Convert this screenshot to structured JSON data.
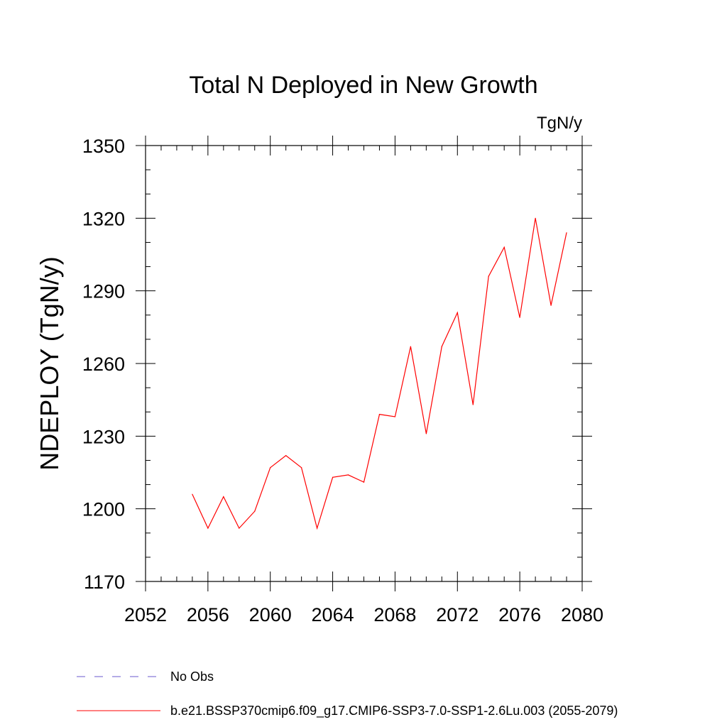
{
  "chart_data": {
    "type": "line",
    "title": "Total N Deployed in New Growth",
    "units_label": "TgN/y",
    "ylabel": "NDEPLOY  (TgN/y)",
    "xlabel": "",
    "xlim": [
      2052,
      2080
    ],
    "ylim": [
      1170,
      1350
    ],
    "x_ticks": [
      2052,
      2056,
      2060,
      2064,
      2068,
      2072,
      2076,
      2080
    ],
    "y_ticks": [
      1170,
      1200,
      1230,
      1260,
      1290,
      1320,
      1350
    ],
    "x_minor_step": 1,
    "y_minor_step": 10,
    "grid": false,
    "series": [
      {
        "name": "b.e21.BSSP370cmip6.f09_g17.CMIP6-SSP3-7.0-SSP1-2.6Lu.003 (2055-2079)",
        "color": "#ff0000",
        "x": [
          2055,
          2056,
          2057,
          2058,
          2059,
          2060,
          2061,
          2062,
          2063,
          2064,
          2065,
          2066,
          2067,
          2068,
          2069,
          2070,
          2071,
          2072,
          2073,
          2074,
          2075,
          2076,
          2077,
          2078,
          2079
        ],
        "values": [
          1206,
          1192,
          1205,
          1192,
          1199,
          1217,
          1222,
          1217,
          1192,
          1213,
          1214,
          1211,
          1239,
          1238,
          1267,
          1231,
          1267,
          1281,
          1243,
          1296,
          1308,
          1279,
          1320,
          1284,
          1314
        ]
      }
    ]
  },
  "legend": {
    "placement": "bottom-left",
    "items": [
      {
        "label": "No Obs",
        "style": "dashed",
        "color": "#6a5acd"
      },
      {
        "label": "b.e21.BSSP370cmip6.f09_g17.CMIP6-SSP3-7.0-SSP1-2.6Lu.003 (2055-2079)",
        "style": "solid",
        "color": "#ff0000"
      }
    ]
  }
}
